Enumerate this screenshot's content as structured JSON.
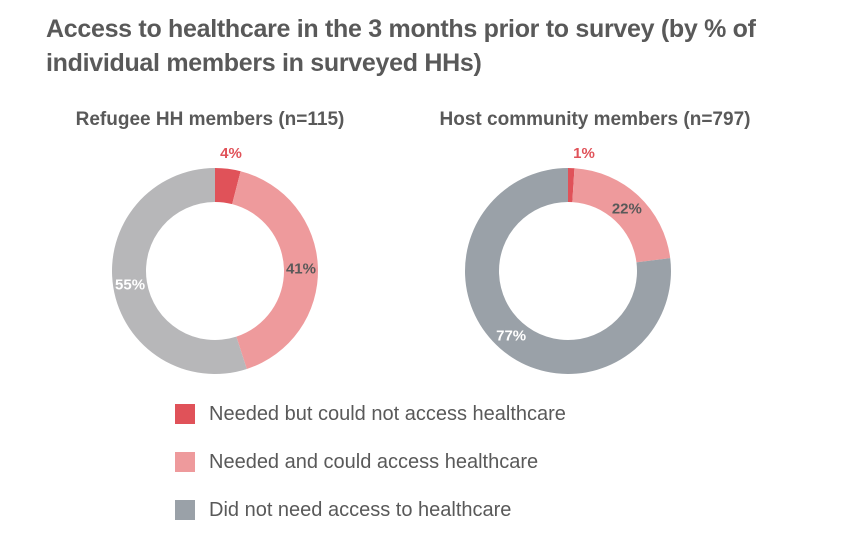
{
  "title": "Access to healthcare in the 3 months prior to survey (by % of individual members in surveyed HHs)",
  "colors": {
    "needed_no_access": "#e05259",
    "needed_access": "#ee9a9c",
    "no_need_refugee": "#b7b7b9",
    "no_need_host": "#9aa1a8"
  },
  "chart_data": {
    "type": "donut",
    "charts": [
      {
        "title": "Refugee HH members (n=115)",
        "slices": [
          {
            "category": "Needed but could not access healthcare",
            "value": 4,
            "label": "4%"
          },
          {
            "category": "Needed and could access healthcare",
            "value": 41,
            "label": "41%"
          },
          {
            "category": "Did not need access to healthcare",
            "value": 55,
            "label": "55%"
          }
        ]
      },
      {
        "title": "Host community members (n=797)",
        "slices": [
          {
            "category": "Needed but could not access healthcare",
            "value": 1,
            "label": "1%"
          },
          {
            "category": "Needed and could access healthcare",
            "value": 22,
            "label": "22%"
          },
          {
            "category": "Did not need access to healthcare",
            "value": 77,
            "label": "77%"
          }
        ]
      }
    ],
    "legend": [
      {
        "label": "Needed but could not access healthcare",
        "color": "#e05259"
      },
      {
        "label": "Needed and could access healthcare",
        "color": "#ee9a9c"
      },
      {
        "label": "Did not need access to healthcare",
        "color": "#9aa1a8"
      }
    ],
    "legend_position": "bottom"
  }
}
